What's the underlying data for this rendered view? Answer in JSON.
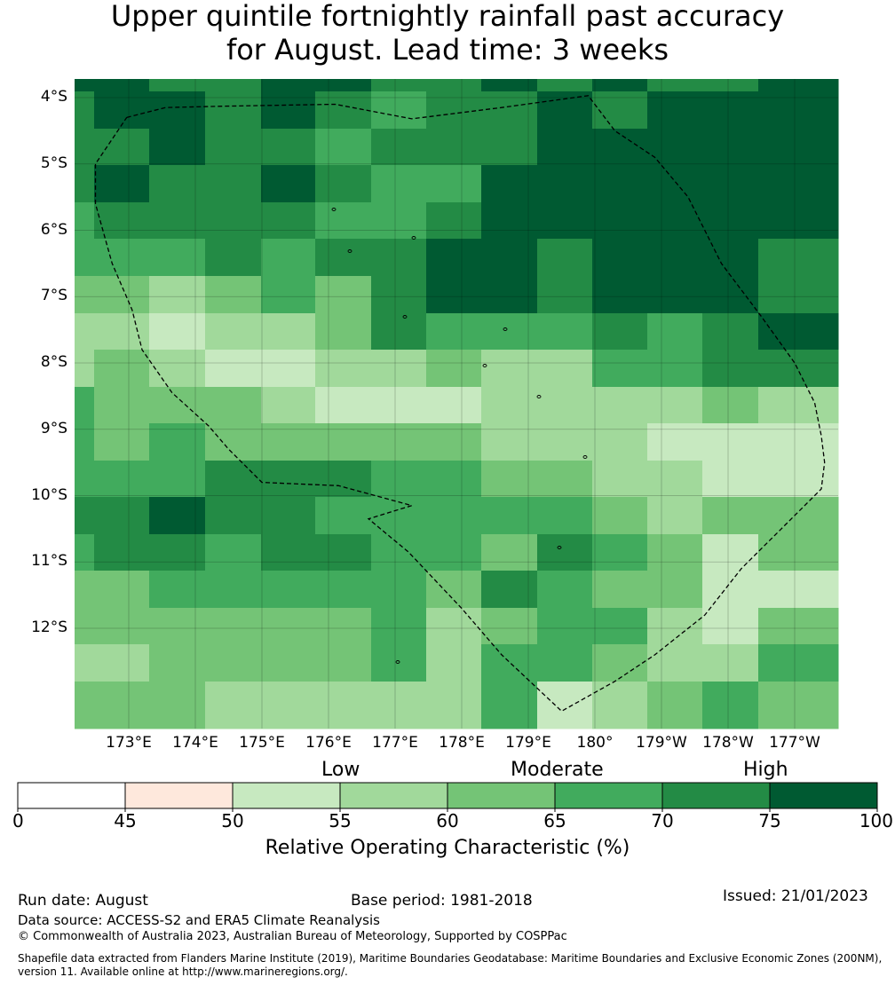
{
  "title": {
    "line1": "Upper quintile fortnightly rainfall past accuracy",
    "line2": "for August. Lead time: 3 weeks"
  },
  "map": {
    "lat_labels": [
      "4°S",
      "5°S",
      "6°S",
      "7°S",
      "8°S",
      "9°S",
      "10°S",
      "11°S",
      "12°S"
    ],
    "lon_labels": [
      "173°E",
      "174°E",
      "175°E",
      "176°E",
      "177°E",
      "178°E",
      "179°E",
      "180°",
      "179°W",
      "178°W",
      "177°W"
    ],
    "grid_rows": [
      [
        7,
        7,
        6,
        6,
        7,
        7,
        6,
        6,
        7,
        6,
        7,
        6,
        6,
        7
      ],
      [
        6,
        7,
        7,
        6,
        7,
        6,
        5,
        6,
        6,
        7,
        6,
        7,
        7,
        7
      ],
      [
        6,
        6,
        7,
        6,
        6,
        5,
        6,
        6,
        6,
        7,
        7,
        7,
        7,
        7
      ],
      [
        6,
        7,
        6,
        6,
        7,
        6,
        5,
        5,
        7,
        7,
        7,
        7,
        7,
        7
      ],
      [
        5,
        6,
        6,
        6,
        6,
        5,
        5,
        6,
        7,
        7,
        7,
        7,
        7,
        7
      ],
      [
        5,
        5,
        5,
        6,
        5,
        6,
        6,
        7,
        7,
        6,
        7,
        7,
        7,
        6
      ],
      [
        4,
        4,
        3,
        4,
        5,
        4,
        6,
        7,
        7,
        6,
        7,
        7,
        7,
        6
      ],
      [
        3,
        3,
        2,
        3,
        3,
        4,
        6,
        5,
        5,
        5,
        6,
        5,
        6,
        7
      ],
      [
        3,
        4,
        3,
        2,
        2,
        3,
        3,
        4,
        3,
        3,
        5,
        5,
        6,
        6
      ],
      [
        5,
        4,
        4,
        4,
        3,
        2,
        2,
        2,
        3,
        3,
        3,
        3,
        4,
        3
      ],
      [
        5,
        4,
        5,
        4,
        4,
        4,
        4,
        4,
        3,
        3,
        3,
        2,
        2,
        2
      ],
      [
        5,
        5,
        5,
        6,
        6,
        6,
        5,
        5,
        4,
        4,
        3,
        3,
        2,
        2
      ],
      [
        6,
        6,
        7,
        6,
        6,
        5,
        5,
        5,
        5,
        5,
        4,
        3,
        4,
        4
      ],
      [
        5,
        6,
        6,
        5,
        6,
        6,
        5,
        5,
        4,
        6,
        5,
        4,
        2,
        4
      ],
      [
        4,
        4,
        5,
        5,
        5,
        5,
        5,
        4,
        6,
        5,
        4,
        4,
        2,
        2
      ],
      [
        4,
        4,
        4,
        4,
        4,
        4,
        5,
        3,
        4,
        5,
        5,
        3,
        2,
        4
      ],
      [
        3,
        3,
        4,
        4,
        4,
        4,
        5,
        3,
        5,
        5,
        4,
        3,
        3,
        5
      ],
      [
        4,
        4,
        4,
        3,
        3,
        3,
        3,
        3,
        5,
        2,
        3,
        4,
        5,
        4
      ]
    ],
    "eez_boundary": [
      [
        172.97,
        -4.3
      ],
      [
        173.55,
        -4.15
      ],
      [
        174.4,
        -4.13
      ],
      [
        176.1,
        -4.1
      ],
      [
        177.25,
        -4.32
      ],
      [
        178.6,
        -4.15
      ],
      [
        179.9,
        -3.97
      ],
      [
        -179.7,
        -4.5
      ],
      [
        -179.1,
        -4.9
      ],
      [
        -178.6,
        -5.5
      ],
      [
        -178.1,
        -6.5
      ],
      [
        -177.5,
        -7.3
      ],
      [
        -177.0,
        -8.0
      ],
      [
        -176.7,
        -8.6
      ],
      [
        -176.6,
        -9.1
      ],
      [
        -176.55,
        -9.5
      ],
      [
        -176.6,
        -9.9
      ],
      [
        -177.2,
        -10.5
      ],
      [
        -177.8,
        -11.1
      ],
      [
        -178.35,
        -11.8
      ],
      [
        -179.1,
        -12.4
      ],
      [
        -179.7,
        -12.8
      ],
      [
        179.5,
        -13.25
      ],
      [
        178.6,
        -12.4
      ],
      [
        178.0,
        -11.7
      ],
      [
        177.2,
        -10.85
      ],
      [
        176.6,
        -10.35
      ],
      [
        177.25,
        -10.15
      ],
      [
        176.15,
        -9.85
      ],
      [
        175.0,
        -9.8
      ],
      [
        174.5,
        -9.3
      ],
      [
        174.2,
        -8.95
      ],
      [
        173.65,
        -8.45
      ],
      [
        173.2,
        -7.8
      ],
      [
        173.05,
        -7.2
      ],
      [
        172.75,
        -6.5
      ],
      [
        172.5,
        -5.6
      ],
      [
        172.5,
        -5.0
      ],
      [
        172.97,
        -4.3
      ]
    ]
  },
  "legend": {
    "categories": [
      "Low",
      "Moderate",
      "High"
    ],
    "tick_labels": [
      "0",
      "45",
      "50",
      "55",
      "60",
      "65",
      "70",
      "75",
      "100"
    ],
    "colors": [
      "#ffffff",
      "#fee8dc",
      "#c7e9c0",
      "#a1d99b",
      "#74c476",
      "#41ab5d",
      "#238b45",
      "#005a32"
    ],
    "axis_label": "Relative Operating Characteristic (%)"
  },
  "footer": {
    "run_date": "Run date: August",
    "base_period": "Base period: 1981-2018",
    "issued": "Issued: 21/01/2023",
    "data_source": "Data source: ACCESS-S2 and ERA5 Climate Reanalysis",
    "copyright": "© Commonwealth of Australia 2023, Australian Bureau of Meteorology, Supported by COSPPac",
    "shapefile": "Shapefile data extracted from Flanders Marine Institute (2019), Maritime Boundaries Geodatabase: Maritime Boundaries and Exclusive Economic Zones (200NM), version 11. Available online at http://www.marineregions.org/."
  }
}
